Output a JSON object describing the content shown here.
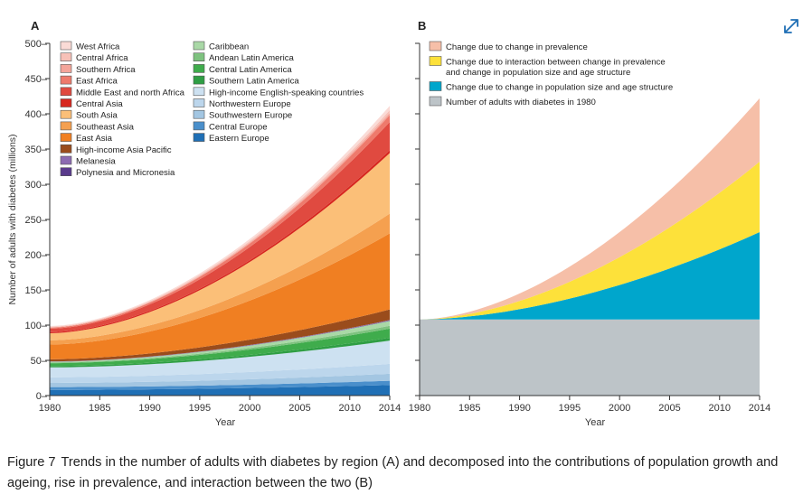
{
  "caption": {
    "figure_label": "Figure 7",
    "text": "Trends in the number of adults with diabetes by region (A) and decomposed into the contributions of population growth and ageing, rise in prevalence, and interaction between the two (B)"
  },
  "expand_icon": "expand-arrows-icon",
  "colors": {
    "axis": "#333333",
    "panel_b": {
      "prevalence": "#f6bfa8",
      "interaction": "#fde13a",
      "population": "#00a6cc",
      "base": "#bdc4c8"
    }
  },
  "chart_data": [
    {
      "type": "area",
      "panel_label": "A",
      "xlabel": "Year",
      "ylabel": "Number of adults with diabetes (millions)",
      "xlim": [
        1980,
        2014
      ],
      "ylim": [
        0,
        500
      ],
      "x_ticks": [
        1980,
        1985,
        1990,
        1995,
        2000,
        2005,
        2010,
        2014
      ],
      "y_ticks": [
        0,
        50,
        100,
        150,
        200,
        250,
        300,
        350,
        400,
        450,
        500
      ],
      "legend_placement": "top-left",
      "legend_order": [
        "West Africa",
        "Central Africa",
        "Southern Africa",
        "East Africa",
        "Middle East and north Africa",
        "Central Asia",
        "South Asia",
        "Southeast Asia",
        "East Asia",
        "High-income Asia Pacific",
        "Melanesia",
        "Polynesia and Micronesia",
        "Caribbean",
        "Andean Latin America",
        "Central Latin America",
        "Southern Latin America",
        "High-income English-speaking countries",
        "Northwestern Europe",
        "Southwestern Europe",
        "Central Europe",
        "Eastern Europe"
      ],
      "x": [
        1980,
        2014
      ],
      "series": [
        {
          "name": "Eastern Europe",
          "color": "#1f6fb5",
          "values": [
            8,
            15
          ]
        },
        {
          "name": "Central Europe",
          "color": "#4a8fcb",
          "values": [
            4,
            6
          ]
        },
        {
          "name": "Southwestern Europe",
          "color": "#a3c6e2",
          "values": [
            6,
            10
          ]
        },
        {
          "name": "Northwestern Europe",
          "color": "#bcd6ec",
          "values": [
            8,
            14
          ]
        },
        {
          "name": "High-income English-speaking countries",
          "color": "#cde1f1",
          "values": [
            14,
            33
          ]
        },
        {
          "name": "Southern Latin America",
          "color": "#2f9e44",
          "values": [
            2,
            4
          ]
        },
        {
          "name": "Central Latin America",
          "color": "#3fac4c",
          "values": [
            4,
            13
          ]
        },
        {
          "name": "Andean Latin America",
          "color": "#7ec27f",
          "values": [
            1,
            4
          ]
        },
        {
          "name": "Caribbean",
          "color": "#a9d8a6",
          "values": [
            1,
            7
          ]
        },
        {
          "name": "Polynesia and Micronesia",
          "color": "#5a3a8c",
          "values": [
            0.2,
            0.5
          ]
        },
        {
          "name": "Melanesia",
          "color": "#8c6bb1",
          "values": [
            0.3,
            0.8
          ]
        },
        {
          "name": "High-income Asia Pacific",
          "color": "#9a4c1c",
          "values": [
            3,
            15
          ]
        },
        {
          "name": "East Asia",
          "color": "#f07f22",
          "values": [
            21,
            108
          ]
        },
        {
          "name": "Southeast Asia",
          "color": "#f5a04f",
          "values": [
            6,
            28
          ]
        },
        {
          "name": "South Asia",
          "color": "#fbbf78",
          "values": [
            10,
            86
          ]
        },
        {
          "name": "Central Asia",
          "color": "#d7261e",
          "values": [
            1.5,
            4
          ]
        },
        {
          "name": "Middle East and north Africa",
          "color": "#e04a40",
          "values": [
            5,
            40
          ]
        },
        {
          "name": "East Africa",
          "color": "#ee7a6c",
          "values": [
            1.5,
            10
          ]
        },
        {
          "name": "Southern Africa",
          "color": "#f4a59a",
          "values": [
            0.5,
            3
          ]
        },
        {
          "name": "Central Africa",
          "color": "#f7c1b8",
          "values": [
            0.8,
            4
          ]
        },
        {
          "name": "West Africa",
          "color": "#fadbd6",
          "values": [
            1,
            6
          ]
        }
      ]
    },
    {
      "type": "area",
      "panel_label": "B",
      "xlabel": "Year",
      "ylabel": "",
      "xlim": [
        1980,
        2014
      ],
      "ylim": [
        0,
        500
      ],
      "x_ticks": [
        1980,
        1985,
        1990,
        1995,
        2000,
        2005,
        2010,
        2014
      ],
      "legend_placement": "top-left",
      "legend_order": [
        "Change due to change in prevalence",
        "Change due to interaction between change in prevalence and change in population size and age structure",
        "Change due to change in population size and age structure",
        "Number of adults with diabetes in 1980"
      ],
      "legend_labels": [
        {
          "lines": [
            "Change due to change in prevalence"
          ],
          "color": "#f6bfa8"
        },
        {
          "lines": [
            "Change due to interaction between change in prevalence",
            "and change in population size and age structure"
          ],
          "color": "#fde13a"
        },
        {
          "lines": [
            "Change due to change in population size and age structure"
          ],
          "color": "#00a6cc"
        },
        {
          "lines": [
            "Number of adults with diabetes in 1980"
          ],
          "color": "#bdc4c8"
        }
      ],
      "x": [
        1980,
        2014
      ],
      "series": [
        {
          "name": "Number of adults with diabetes in 1980",
          "color": "#bdc4c8",
          "values": [
            108,
            108
          ]
        },
        {
          "name": "Change due to change in population size and age structure",
          "color": "#00a6cc",
          "values": [
            0,
            124
          ]
        },
        {
          "name": "Change due to interaction between change in prevalence and change in population size and age structure",
          "color": "#fde13a",
          "values": [
            0,
            100
          ]
        },
        {
          "name": "Change due to change in prevalence",
          "color": "#f6bfa8",
          "values": [
            0,
            90
          ]
        }
      ]
    }
  ]
}
